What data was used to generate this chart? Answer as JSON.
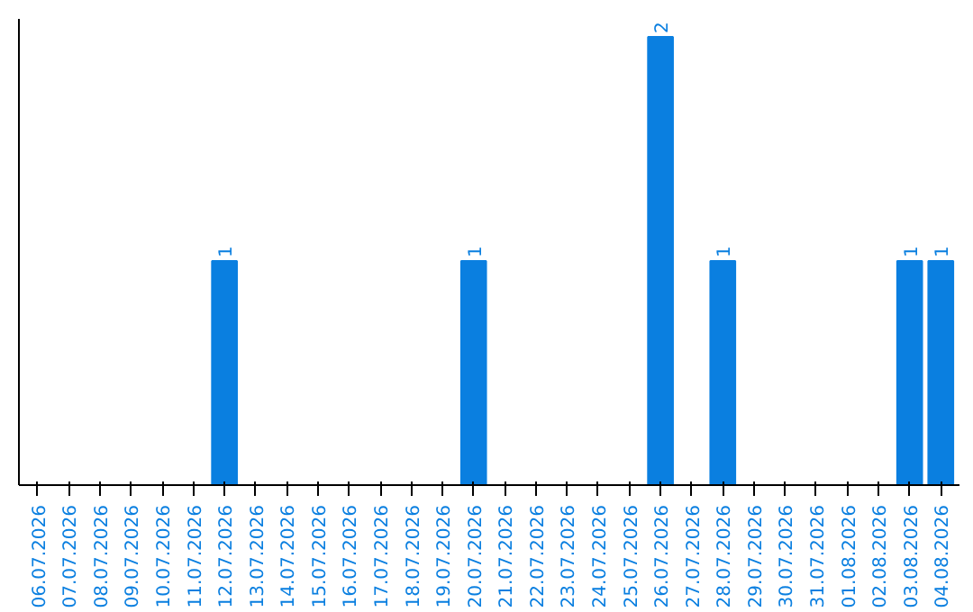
{
  "chart_data": {
    "type": "bar",
    "categories": [
      "06.07.2026",
      "07.07.2026",
      "08.07.2026",
      "09.07.2026",
      "10.07.2026",
      "11.07.2026",
      "12.07.2026",
      "13.07.2026",
      "14.07.2026",
      "15.07.2026",
      "16.07.2026",
      "17.07.2026",
      "18.07.2026",
      "19.07.2026",
      "20.07.2026",
      "21.07.2026",
      "22.07.2026",
      "23.07.2026",
      "24.07.2026",
      "25.07.2026",
      "26.07.2026",
      "27.07.2026",
      "28.07.2026",
      "29.07.2026",
      "30.07.2026",
      "31.07.2026",
      "01.08.2026",
      "02.08.2026",
      "03.08.2026",
      "04.08.2026"
    ],
    "values": [
      0,
      0,
      0,
      0,
      0,
      0,
      1,
      0,
      0,
      0,
      0,
      0,
      0,
      0,
      1,
      0,
      0,
      0,
      0,
      0,
      2,
      0,
      1,
      0,
      0,
      0,
      0,
      0,
      1,
      1
    ],
    "value_labels": [
      null,
      null,
      null,
      null,
      null,
      null,
      "1",
      null,
      null,
      null,
      null,
      null,
      null,
      null,
      "1",
      null,
      null,
      null,
      null,
      null,
      "2",
      null,
      "1",
      null,
      null,
      null,
      null,
      null,
      "1",
      "1"
    ],
    "color": "#0a7fe0",
    "tick_labels": "x",
    "grid": false
  }
}
